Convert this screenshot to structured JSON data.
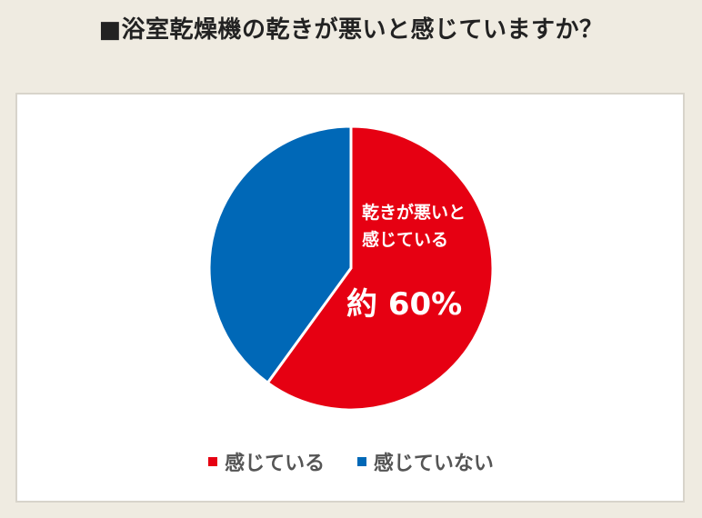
{
  "chart_data": {
    "type": "pie",
    "title": "■浴室乾燥機の乾きが悪いと感じていますか？",
    "slices": [
      {
        "name": "感じている",
        "value": 60,
        "color": "#e60012",
        "label_lines": [
          "乾きが悪いと",
          "感じている"
        ],
        "value_label": "約 60%"
      },
      {
        "name": "感じていない",
        "value": 40,
        "color": "#0068b7",
        "label_lines": [],
        "value_label": ""
      }
    ],
    "legend": "bottom"
  }
}
